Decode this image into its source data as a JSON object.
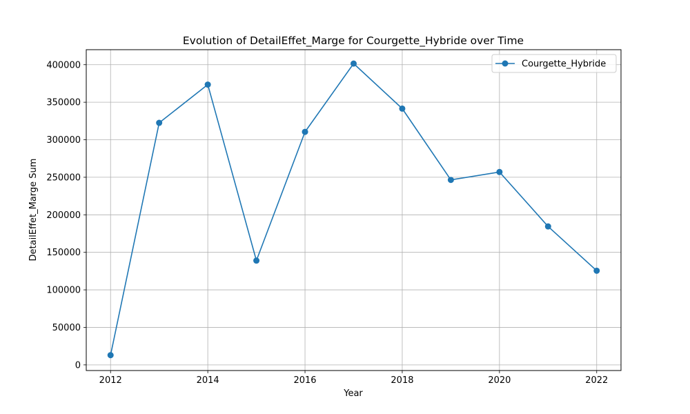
{
  "chart_data": {
    "type": "line",
    "title": "Evolution of DetailEffet_Marge for Courgette_Hybride over Time",
    "xlabel": "Year",
    "ylabel": "DetailEffet_Marge Sum",
    "xlim": [
      2011.5,
      2022.5
    ],
    "ylim": [
      -7500,
      420000
    ],
    "xticks": [
      2012,
      2014,
      2016,
      2018,
      2020,
      2022
    ],
    "yticks": [
      0,
      50000,
      100000,
      150000,
      200000,
      250000,
      300000,
      350000,
      400000
    ],
    "grid": true,
    "legend_position": "upper right",
    "series": [
      {
        "name": "Courgette_Hybride",
        "color": "#1f77b4",
        "marker": "circle",
        "x": [
          2012,
          2013,
          2014,
          2015,
          2016,
          2017,
          2018,
          2019,
          2020,
          2021,
          2022
        ],
        "y": [
          13000,
          322500,
          373500,
          139000,
          310500,
          401500,
          341500,
          246500,
          257000,
          184500,
          125500
        ]
      }
    ]
  }
}
